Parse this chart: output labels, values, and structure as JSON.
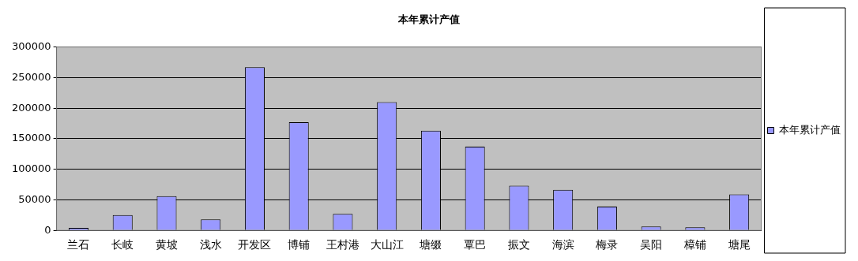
{
  "chart_data": {
    "type": "bar",
    "title": "本年累计产值",
    "categories": [
      "兰石",
      "长岐",
      "黄坡",
      "浅水",
      "开发区",
      "博铺",
      "王村港",
      "大山江",
      "塘缀",
      "覃巴",
      "振文",
      "海滨",
      "梅录",
      "吴阳",
      "樟铺",
      "塘尾"
    ],
    "series": [
      {
        "name": "本年累计产值",
        "color": "#9999ff",
        "values": [
          4000,
          25000,
          56000,
          18000,
          267000,
          177000,
          27000,
          210000,
          163000,
          137000,
          73000,
          66500,
          39000,
          6500,
          5000,
          59000
        ]
      }
    ],
    "ylim": [
      0,
      300000
    ],
    "yticks": [
      0,
      50000,
      100000,
      150000,
      200000,
      250000,
      300000
    ],
    "grid": "y",
    "legend": "right"
  }
}
